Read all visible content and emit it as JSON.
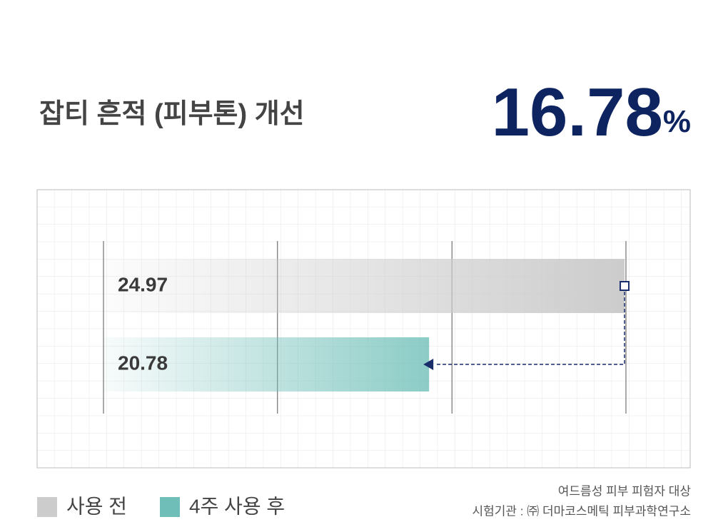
{
  "chart_data": {
    "type": "hbar",
    "title": "잡티 흔적 (피부톤) 개선",
    "headline": {
      "value": "16.78",
      "unit": "%"
    },
    "series": [
      {
        "name": "사용 전",
        "color": "#cccccc",
        "values": [
          24.97
        ]
      },
      {
        "name": "4주 사용 후",
        "color": "#6fbfb8",
        "values": [
          20.78
        ]
      }
    ],
    "xlim": [
      13.8,
      25
    ],
    "xticks": [
      13.8,
      17.53,
      21.27,
      25
    ],
    "grid": true,
    "notes": [
      "여드름성 피부 피험자 대상",
      "시험기관 : ㈜ 더마코스메틱 피부과학연구소"
    ]
  }
}
